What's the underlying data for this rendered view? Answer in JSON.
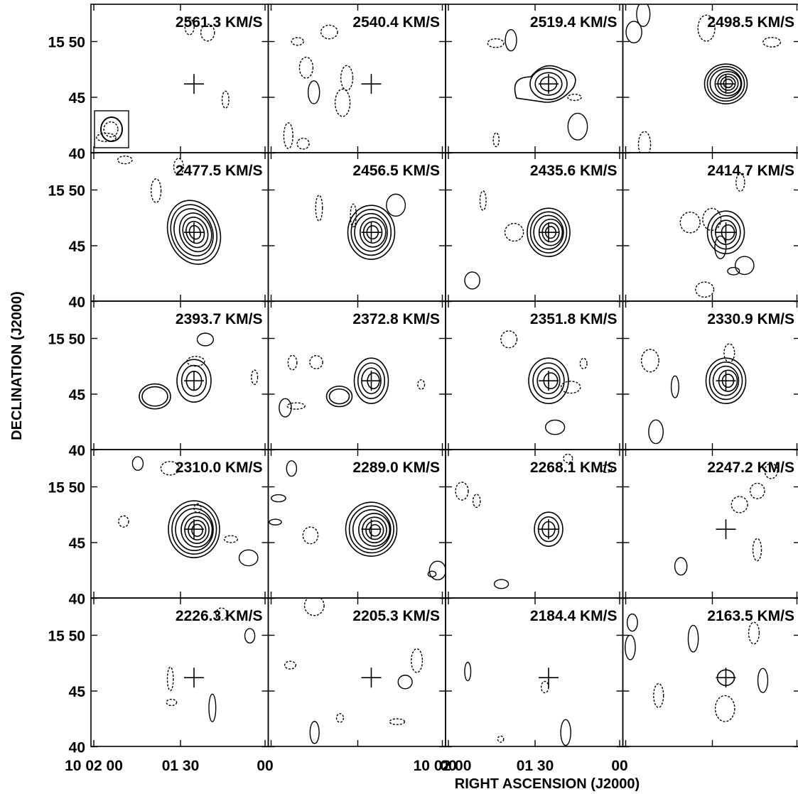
{
  "chart_data": {
    "type": "contour-channel-maps",
    "xlabel": "RIGHT ASCENSION (J2000)",
    "ylabel": "DECLINATION (J2000)",
    "grid": {
      "rows": 5,
      "cols": 4
    },
    "y_ticks": [
      {
        "value": 50,
        "label": "15 50"
      },
      {
        "value": 45,
        "label": "45"
      },
      {
        "value": 40,
        "label": "40"
      }
    ],
    "x_ticks": [
      {
        "col": 0,
        "labels": [
          "10 02 00",
          "01 30",
          "00"
        ]
      },
      {
        "col": 1,
        "labels": [
          "",
          "",
          "10 02 00"
        ]
      },
      {
        "col": 2,
        "labels": [
          "00",
          "01 30",
          "00"
        ]
      }
    ],
    "channels": [
      {
        "label": "2561.3 KM/S",
        "velocity": 2561.3
      },
      {
        "label": "2540.4 KM/S",
        "velocity": 2540.4
      },
      {
        "label": "2519.4 KM/S",
        "velocity": 2519.4
      },
      {
        "label": "2498.5 KM/S",
        "velocity": 2498.5
      },
      {
        "label": "2477.5 KM/S",
        "velocity": 2477.5
      },
      {
        "label": "2456.5 KM/S",
        "velocity": 2456.5
      },
      {
        "label": "2435.6 KM/S",
        "velocity": 2435.6
      },
      {
        "label": "2414.7 KM/S",
        "velocity": 2414.7
      },
      {
        "label": "2393.7 KM/S",
        "velocity": 2393.7
      },
      {
        "label": "2372.8 KM/S",
        "velocity": 2372.8
      },
      {
        "label": "2351.8 KM/S",
        "velocity": 2351.8
      },
      {
        "label": "2330.9 KM/S",
        "velocity": 2330.9
      },
      {
        "label": "2310.0 KM/S",
        "velocity": 2310.0
      },
      {
        "label": "2289.0 KM/S",
        "velocity": 2289.0
      },
      {
        "label": "2268.1 KM/S",
        "velocity": 2268.1
      },
      {
        "label": "2247.2 KM/S",
        "velocity": 2247.2
      },
      {
        "label": "2226.3 KM/S",
        "velocity": 2226.3
      },
      {
        "label": "2205.3 KM/S",
        "velocity": 2205.3
      },
      {
        "label": "2184.4 KM/S",
        "velocity": 2184.4
      },
      {
        "label": "2163.5 KM/S",
        "velocity": 2163.5
      }
    ]
  }
}
